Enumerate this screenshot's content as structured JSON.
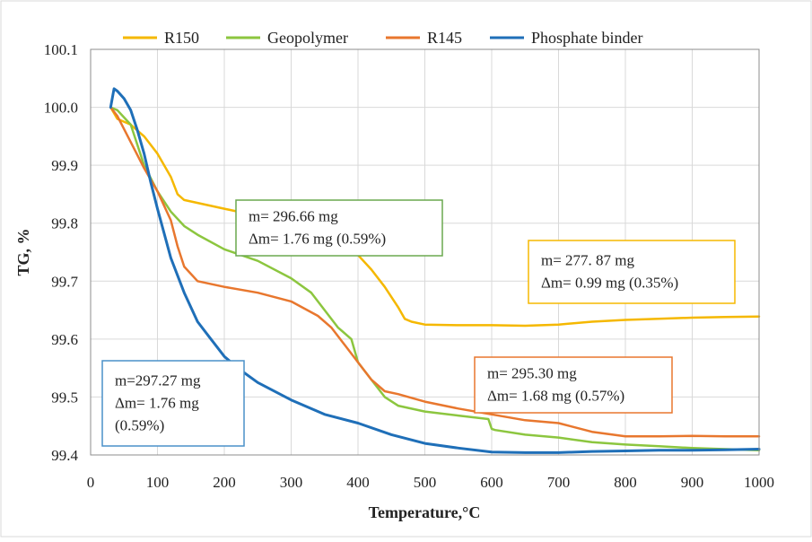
{
  "chart_data": {
    "type": "line",
    "title": "",
    "xlabel": "Temperature,°C",
    "ylabel": "TG, %",
    "xlim": [
      0,
      1000
    ],
    "ylim": [
      99.4,
      100.1
    ],
    "xticks": [
      0,
      100,
      200,
      300,
      400,
      500,
      600,
      700,
      800,
      900,
      1000
    ],
    "xtick_labels": [
      "0",
      "100",
      "200",
      "300",
      "400",
      "500",
      "600",
      "700",
      "800",
      "900",
      "1000"
    ],
    "yticks": [
      99.4,
      99.5,
      99.6,
      99.7,
      99.8,
      99.9,
      100.0,
      100.1
    ],
    "ytick_labels": [
      "99.4",
      "99.5",
      "99.6",
      "99.7",
      "99.8",
      "99.9",
      "100.0",
      "100.1"
    ],
    "grid": true,
    "legend_position": "top",
    "series": [
      {
        "name": "R150",
        "color": "#f5b800",
        "x": [
          30,
          40,
          60,
          80,
          100,
          120,
          130,
          140,
          160,
          200,
          240,
          300,
          340,
          360,
          380,
          400,
          420,
          440,
          460,
          470,
          480,
          500,
          550,
          600,
          650,
          700,
          750,
          800,
          850,
          900,
          950,
          1000
        ],
        "y": [
          100.0,
          99.98,
          99.97,
          99.95,
          99.92,
          99.88,
          99.85,
          99.84,
          99.835,
          99.825,
          99.815,
          99.8,
          99.78,
          99.77,
          99.76,
          99.745,
          99.72,
          99.69,
          99.655,
          99.635,
          99.63,
          99.625,
          99.624,
          99.624,
          99.623,
          99.625,
          99.63,
          99.633,
          99.635,
          99.637,
          99.638,
          99.639
        ]
      },
      {
        "name": "Geopolymer",
        "color": "#8cc63f",
        "x": [
          30,
          40,
          60,
          80,
          100,
          120,
          140,
          160,
          200,
          250,
          300,
          330,
          350,
          370,
          390,
          395,
          400,
          420,
          440,
          460,
          500,
          550,
          595,
          600,
          605,
          650,
          700,
          750,
          800,
          850,
          900,
          950,
          1000
        ],
        "y": [
          100.0,
          99.995,
          99.97,
          99.9,
          99.855,
          99.82,
          99.795,
          99.78,
          99.755,
          99.735,
          99.705,
          99.68,
          99.65,
          99.62,
          99.6,
          99.58,
          99.56,
          99.53,
          99.5,
          99.485,
          99.475,
          99.468,
          99.462,
          99.445,
          99.443,
          99.435,
          99.43,
          99.422,
          99.418,
          99.415,
          99.412,
          99.41,
          99.408
        ]
      },
      {
        "name": "R145",
        "color": "#e8772e",
        "x": [
          30,
          40,
          60,
          80,
          100,
          120,
          130,
          140,
          160,
          200,
          250,
          300,
          340,
          360,
          380,
          400,
          420,
          440,
          460,
          500,
          550,
          600,
          650,
          700,
          750,
          800,
          850,
          900,
          950,
          1000
        ],
        "y": [
          100.0,
          99.985,
          99.94,
          99.895,
          99.855,
          99.805,
          99.76,
          99.725,
          99.7,
          99.69,
          99.68,
          99.665,
          99.64,
          99.62,
          99.59,
          99.56,
          99.53,
          99.51,
          99.505,
          99.492,
          99.48,
          99.47,
          99.46,
          99.455,
          99.44,
          99.432,
          99.432,
          99.433,
          99.432,
          99.432
        ]
      },
      {
        "name": "Phosphate binder",
        "color": "#1f6fb8",
        "x": [
          30,
          35,
          40,
          50,
          60,
          70,
          80,
          90,
          100,
          120,
          140,
          160,
          180,
          200,
          220,
          250,
          300,
          350,
          400,
          450,
          500,
          550,
          600,
          650,
          700,
          750,
          800,
          850,
          900,
          950,
          1000
        ],
        "y": [
          100.0,
          100.032,
          100.028,
          100.015,
          99.995,
          99.96,
          99.92,
          99.87,
          99.825,
          99.74,
          99.68,
          99.63,
          99.6,
          99.57,
          99.55,
          99.525,
          99.495,
          99.47,
          99.455,
          99.435,
          99.42,
          99.412,
          99.405,
          99.404,
          99.404,
          99.406,
          99.407,
          99.408,
          99.408,
          99.409,
          99.41
        ]
      }
    ],
    "annotations": [
      {
        "series": "Geopolymer",
        "color": "#6aa84f",
        "lines": [
          "m= 296.66 mg",
          "Δm= 1.76 mg (0.59%)"
        ]
      },
      {
        "series": "R150",
        "color": "#f5b800",
        "lines": [
          "m= 277. 87 mg",
          "Δm= 0.99 mg (0.35%)"
        ]
      },
      {
        "series": "Phosphate binder",
        "color": "#4a90c8",
        "lines": [
          "m=297.27 mg",
          "Δm= 1.76 mg",
          "(0.59%)"
        ]
      },
      {
        "series": "R145",
        "color": "#e8772e",
        "lines": [
          "m= 295.30 mg",
          "Δm= 1.68 mg (0.57%)"
        ]
      }
    ]
  }
}
